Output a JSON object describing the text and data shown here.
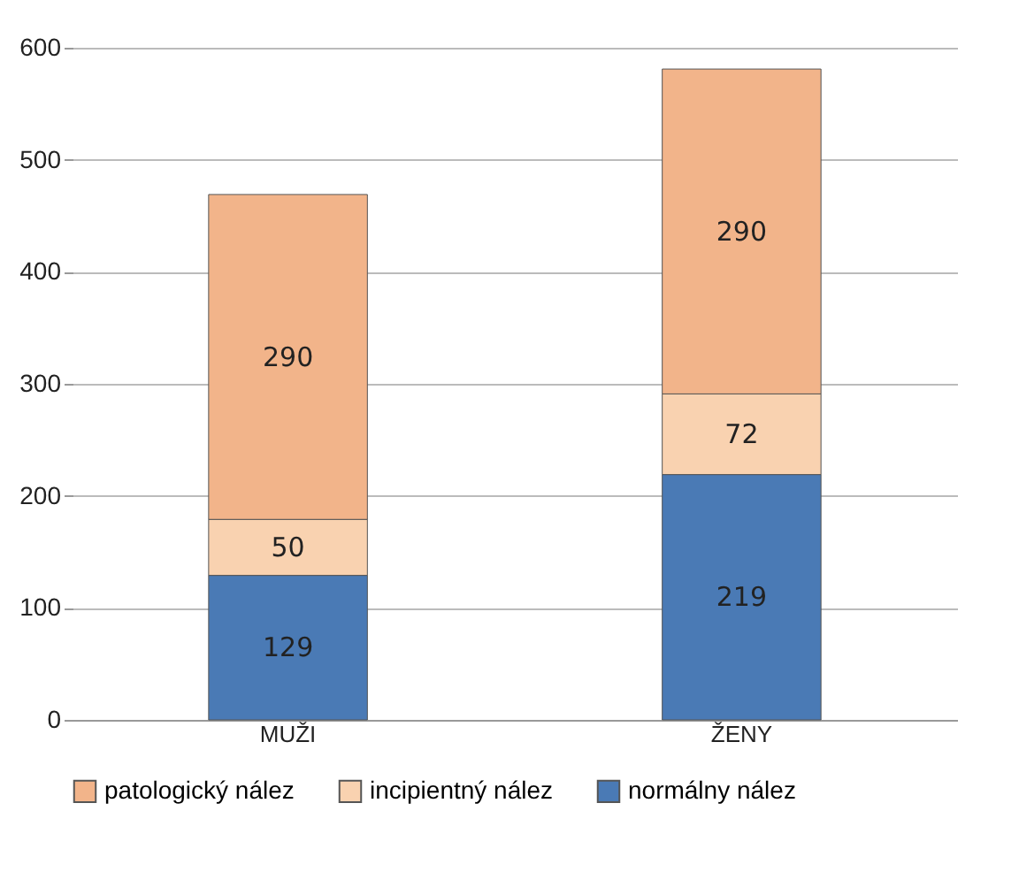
{
  "chart_data": {
    "type": "bar",
    "stacked": true,
    "categories": [
      "MUŽI",
      "ŽENY"
    ],
    "series": [
      {
        "name": "normálny nález",
        "color": "#4a7ab5",
        "values": [
          129,
          219
        ]
      },
      {
        "name": "incipientný nález",
        "color": "#f9d2b0",
        "values": [
          50,
          72
        ]
      },
      {
        "name": "patologický nález",
        "color": "#f2b48a",
        "values": [
          290,
          290
        ]
      }
    ],
    "ylim": [
      0,
      600
    ],
    "yticks": [
      0,
      100,
      200,
      300,
      400,
      500,
      600
    ],
    "grid": "y",
    "legend": "bottom",
    "data_labels": true
  }
}
